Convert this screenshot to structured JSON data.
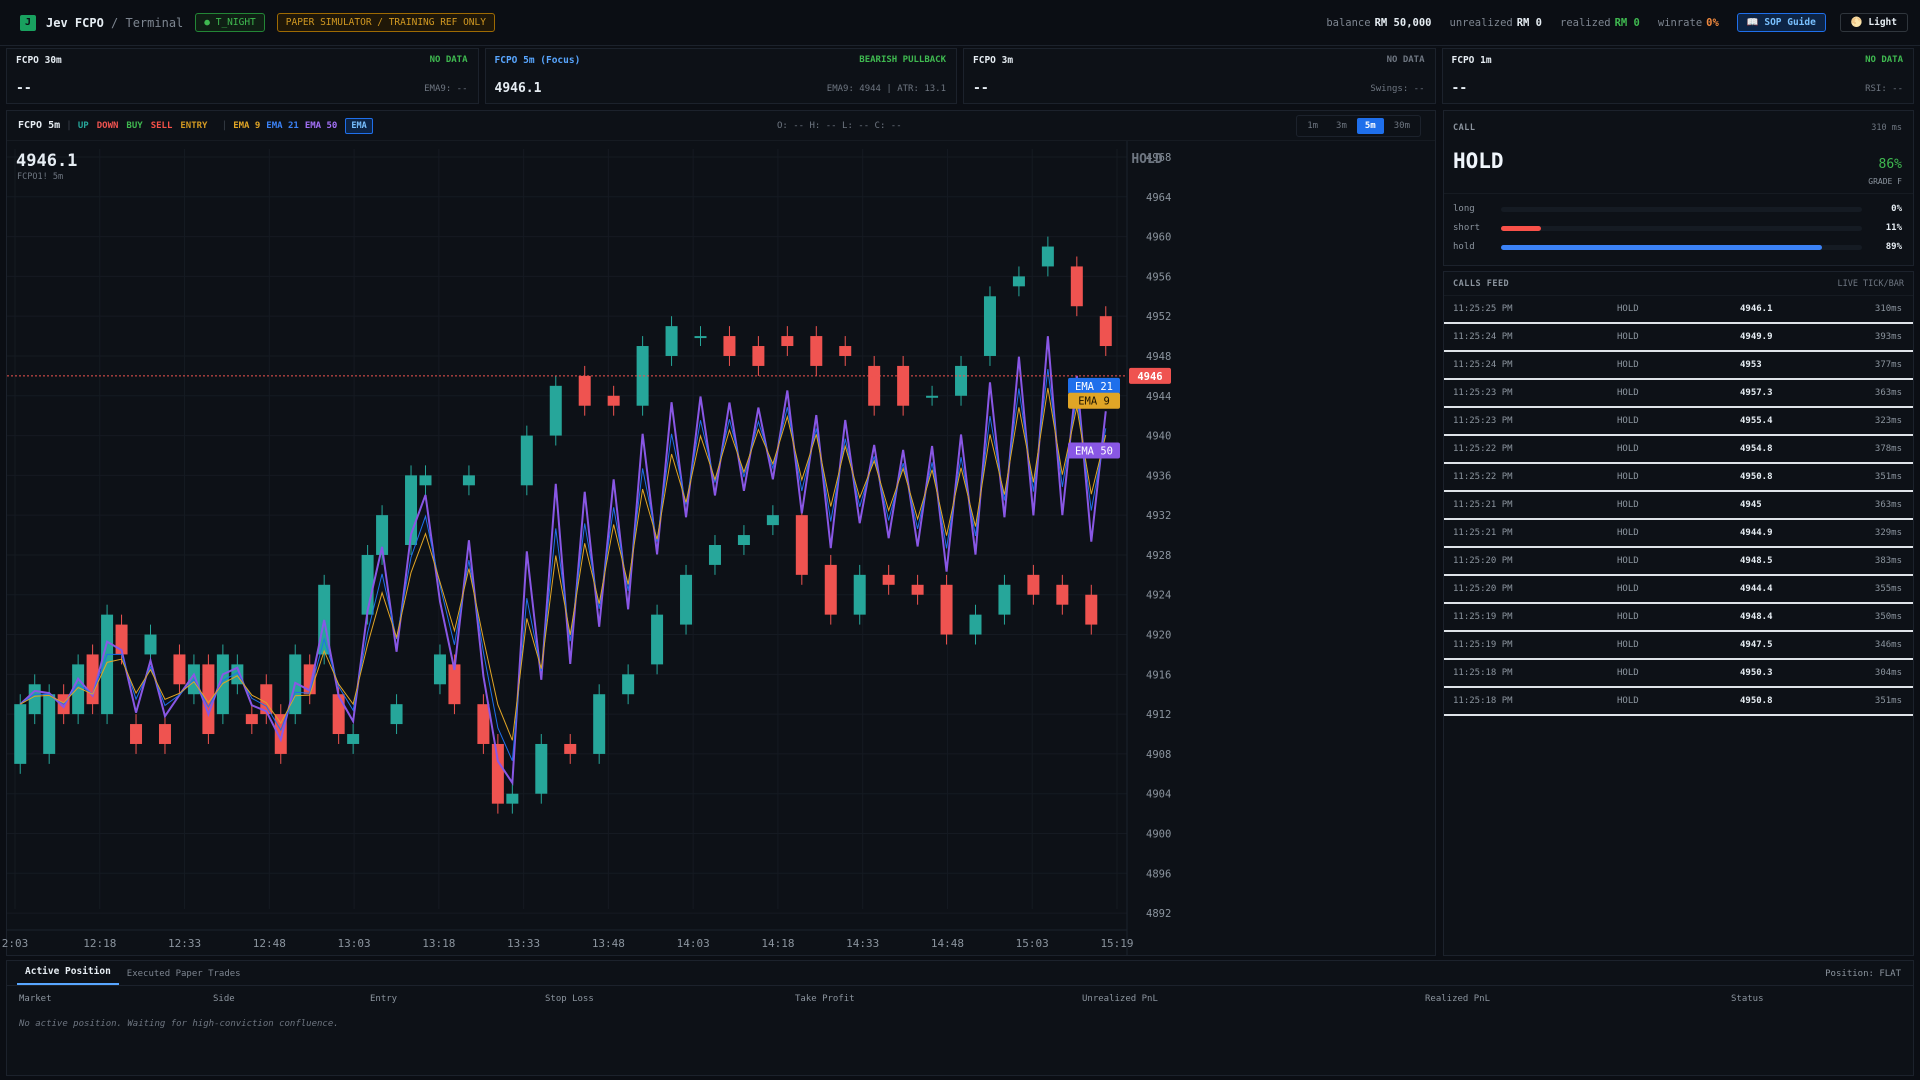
{
  "app": {
    "logo": "J",
    "title": "Jev FCPO",
    "subtitle": " / Terminal",
    "session": "● T_NIGHT",
    "mode": "PAPER SIMULATOR / TRAINING REF ONLY"
  },
  "stats": {
    "balance_label": "balance",
    "balance": "RM 50,000",
    "unrealized_label": "unrealized",
    "unrealized": "RM 0",
    "realized_label": "realized",
    "realized": "RM 0",
    "winrate_label": "winrate",
    "winrate": "0%",
    "sop_label": "📖 SOP Guide",
    "theme_label": "🌕 Light"
  },
  "tiles": [
    {
      "title": "FCPO 30m",
      "status": "NO DATA",
      "status_color": "#3fb950",
      "price": "--",
      "ind": "EMA9: --"
    },
    {
      "title": "FCPO 5m (Focus)",
      "status": "BEARISH PULLBACK",
      "status_color": "#3fb950",
      "price": "4946.1",
      "ind": "EMA9: 4944 | ATR: 13.1"
    },
    {
      "title": "FCPO 3m",
      "status": "NO DATA",
      "status_color": "#6e7681",
      "price": "--",
      "ind": "Swings: --"
    },
    {
      "title": "FCPO 1m",
      "status": "NO DATA",
      "status_color": "#3fb950",
      "price": "--",
      "ind": "RSI: --"
    }
  ],
  "chart_header": {
    "symbol": "FCPO 5m",
    "up": "UP",
    "down": "DOWN",
    "buy": "BUY",
    "sell": "SELL",
    "entry": "ENTRY",
    "ema9": "EMA 9",
    "ema21": "EMA 21",
    "ema50": "EMA 50",
    "ema_toggle": "EMA",
    "ohlc": "O: -- H: -- L: -- C: --",
    "timeframes": [
      "1m",
      "3m",
      "5m",
      "30m"
    ],
    "active_tf": "5m",
    "price": "4946.1",
    "sub": "FCPO1! 5m",
    "call_watermark": "HOLD"
  },
  "colors": {
    "up": "#26a69a",
    "down": "#ef5350",
    "buy": "#3fb950",
    "sell": "#f85149",
    "entry": "#d29922",
    "ema9": "#e0a526",
    "ema21": "#1f6feb",
    "ema50": "#8957e5"
  },
  "chart_data": {
    "type": "candlestick",
    "ylim": [
      4890,
      4968
    ],
    "y_ticks": [
      4892,
      4896,
      4900,
      4904,
      4908,
      4912,
      4916,
      4920,
      4924,
      4928,
      4932,
      4936,
      4940,
      4944,
      4948,
      4952,
      4956,
      4960,
      4964,
      4968
    ],
    "x_ticks": [
      "2:03",
      "12:18",
      "12:33",
      "12:48",
      "13:03",
      "13:18",
      "13:33",
      "13:48",
      "14:03",
      "14:18",
      "14:33",
      "14:48",
      "15:03",
      "15:19"
    ],
    "last_price": 4946,
    "last_price_label": "4946",
    "ema_labels": [
      "EMA 21",
      "EMA 9",
      "EMA 50"
    ],
    "ema_values": [
      4945,
      4943.5,
      4938.5
    ],
    "candles": [
      [
        4907,
        4913,
        4906,
        4914
      ],
      [
        4912,
        4915,
        4911,
        4916
      ],
      [
        4908,
        4914,
        4907,
        4915
      ],
      [
        4914,
        4912,
        4911,
        4915
      ],
      [
        4912,
        4917,
        4911,
        4918
      ],
      [
        4918,
        4913,
        4912,
        4919
      ],
      [
        4912,
        4922,
        4911,
        4923
      ],
      [
        4921,
        4918,
        4917,
        4922
      ],
      [
        4911,
        4909,
        4908,
        4912
      ],
      [
        4918,
        4920,
        4917,
        4921
      ],
      [
        4911,
        4909,
        4908,
        4912
      ],
      [
        4918,
        4915,
        4914,
        4919
      ],
      [
        4914,
        4917,
        4913,
        4918
      ],
      [
        4917,
        4910,
        4909,
        4918
      ],
      [
        4912,
        4918,
        4911,
        4919
      ],
      [
        4915,
        4917,
        4914,
        4918
      ],
      [
        4912,
        4911,
        4910,
        4913
      ],
      [
        4915,
        4912,
        4911,
        4916
      ],
      [
        4912,
        4908,
        4907,
        4913
      ],
      [
        4912,
        4918,
        4911,
        4919
      ],
      [
        4917,
        4914,
        4913,
        4918
      ],
      [
        4918,
        4925,
        4917,
        4926
      ],
      [
        4914,
        4910,
        4909,
        4915
      ],
      [
        4909,
        4910,
        4908,
        4911
      ],
      [
        4922,
        4928,
        4921,
        4929
      ],
      [
        4928,
        4932,
        4927,
        4933
      ],
      [
        4911,
        4913,
        4910,
        4914
      ],
      [
        4929,
        4936,
        4928,
        4937
      ],
      [
        4935,
        4936,
        4934,
        4937
      ],
      [
        4915,
        4918,
        4914,
        4919
      ],
      [
        4917,
        4913,
        4912,
        4918
      ],
      [
        4935,
        4936,
        4934,
        4937
      ],
      [
        4913,
        4909,
        4908,
        4914
      ],
      [
        4909,
        4903,
        4902,
        4910
      ],
      [
        4903,
        4904,
        4902,
        4905
      ],
      [
        4935,
        4940,
        4934,
        4941
      ],
      [
        4904,
        4909,
        4903,
        4910
      ],
      [
        4940,
        4945,
        4939,
        4946
      ],
      [
        4909,
        4908,
        4907,
        4910
      ],
      [
        4946,
        4943,
        4942,
        4947
      ],
      [
        4908,
        4914,
        4907,
        4915
      ],
      [
        4944,
        4943,
        4942,
        4945
      ],
      [
        4914,
        4916,
        4913,
        4917
      ],
      [
        4943,
        4949,
        4942,
        4950
      ],
      [
        4917,
        4922,
        4916,
        4923
      ],
      [
        4948,
        4951,
        4947,
        4952
      ],
      [
        4921,
        4926,
        4920,
        4927
      ],
      [
        4950,
        4950,
        4949,
        4951
      ],
      [
        4927,
        4929,
        4926,
        4930
      ],
      [
        4950,
        4948,
        4947,
        4951
      ],
      [
        4929,
        4930,
        4928,
        4931
      ],
      [
        4949,
        4947,
        4946,
        4950
      ],
      [
        4931,
        4932,
        4930,
        4933
      ],
      [
        4950,
        4949,
        4948,
        4951
      ],
      [
        4932,
        4926,
        4925,
        4933
      ],
      [
        4950,
        4947,
        4946,
        4951
      ],
      [
        4927,
        4922,
        4921,
        4928
      ],
      [
        4949,
        4948,
        4947,
        4950
      ],
      [
        4922,
        4926,
        4921,
        4927
      ],
      [
        4947,
        4943,
        4942,
        4948
      ],
      [
        4926,
        4925,
        4924,
        4927
      ],
      [
        4947,
        4943,
        4942,
        4948
      ],
      [
        4925,
        4924,
        4923,
        4926
      ],
      [
        4944,
        4944,
        4943,
        4945
      ],
      [
        4925,
        4920,
        4919,
        4926
      ],
      [
        4944,
        4947,
        4943,
        4948
      ],
      [
        4920,
        4922,
        4919,
        4923
      ],
      [
        4948,
        4954,
        4947,
        4955
      ],
      [
        4922,
        4925,
        4921,
        4926
      ],
      [
        4955,
        4956,
        4954,
        4957
      ],
      [
        4926,
        4924,
        4923,
        4927
      ],
      [
        4957,
        4959,
        4956,
        4960
      ],
      [
        4925,
        4923,
        4922,
        4926
      ],
      [
        4957,
        4953,
        4952,
        4958
      ],
      [
        4924,
        4921,
        4920,
        4925
      ],
      [
        4952,
        4949,
        4948,
        4953
      ]
    ]
  },
  "call": {
    "label": "CALL",
    "latency": "310 ms",
    "value": "HOLD",
    "confidence": "86%",
    "grade": "GRADE F",
    "probs": [
      {
        "label": "long",
        "value": "0%",
        "pct": 0,
        "color": "#f85149"
      },
      {
        "label": "short",
        "value": "11%",
        "pct": 11,
        "color": "#f85149"
      },
      {
        "label": "hold",
        "value": "89%",
        "pct": 89,
        "color": "#3b82f6"
      }
    ]
  },
  "feed": {
    "title": "CALLS FEED",
    "right": "LIVE TICK/BAR",
    "rows": [
      {
        "time": "11:25:25 PM",
        "call": "HOLD",
        "price": "4946.1",
        "lat": "310ms"
      },
      {
        "time": "11:25:24 PM",
        "call": "HOLD",
        "price": "4949.9",
        "lat": "393ms"
      },
      {
        "time": "11:25:24 PM",
        "call": "HOLD",
        "price": "4953",
        "lat": "377ms"
      },
      {
        "time": "11:25:23 PM",
        "call": "HOLD",
        "price": "4957.3",
        "lat": "363ms"
      },
      {
        "time": "11:25:23 PM",
        "call": "HOLD",
        "price": "4955.4",
        "lat": "323ms"
      },
      {
        "time": "11:25:22 PM",
        "call": "HOLD",
        "price": "4954.8",
        "lat": "378ms"
      },
      {
        "time": "11:25:22 PM",
        "call": "HOLD",
        "price": "4950.8",
        "lat": "351ms"
      },
      {
        "time": "11:25:21 PM",
        "call": "HOLD",
        "price": "4945",
        "lat": "363ms"
      },
      {
        "time": "11:25:21 PM",
        "call": "HOLD",
        "price": "4944.9",
        "lat": "329ms"
      },
      {
        "time": "11:25:20 PM",
        "call": "HOLD",
        "price": "4948.5",
        "lat": "383ms"
      },
      {
        "time": "11:25:20 PM",
        "call": "HOLD",
        "price": "4944.4",
        "lat": "355ms"
      },
      {
        "time": "11:25:19 PM",
        "call": "HOLD",
        "price": "4948.4",
        "lat": "350ms"
      },
      {
        "time": "11:25:19 PM",
        "call": "HOLD",
        "price": "4947.5",
        "lat": "346ms"
      },
      {
        "time": "11:25:18 PM",
        "call": "HOLD",
        "price": "4950.3",
        "lat": "304ms"
      },
      {
        "time": "11:25:18 PM",
        "call": "HOLD",
        "price": "4950.8",
        "lat": "351ms"
      }
    ]
  },
  "positions": {
    "tab_active": "Active Position",
    "tab_trades": "Executed Paper Trades",
    "position_status": "Position: FLAT",
    "columns": [
      "Market",
      "Side",
      "Entry",
      "Stop Loss",
      "Take Profit",
      "Unrealized PnL",
      "Realized PnL",
      "Status"
    ],
    "empty": "No active position. Waiting for high-conviction confluence."
  }
}
